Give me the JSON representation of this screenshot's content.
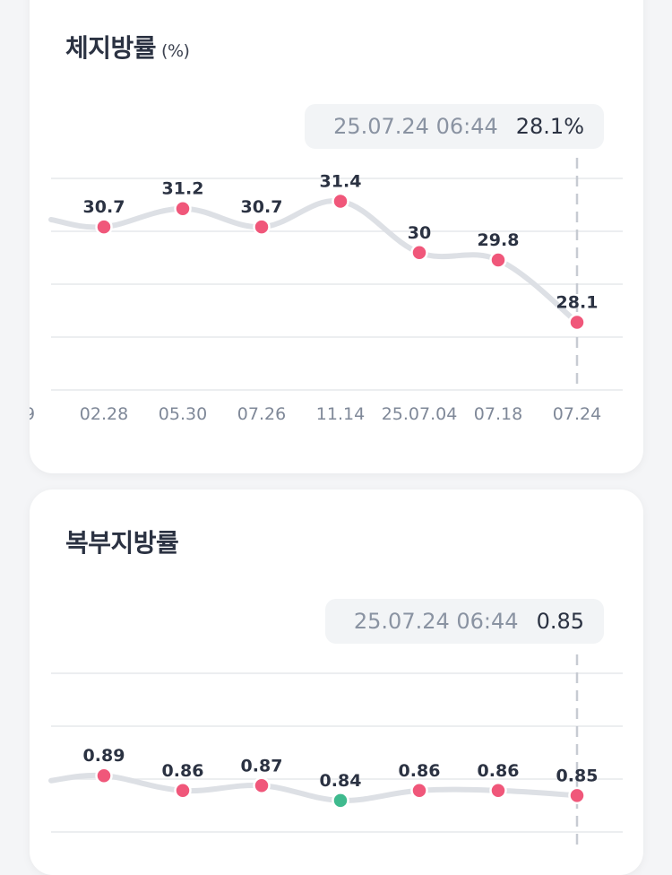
{
  "cards": [
    {
      "title": "체지방률",
      "unit": "(%)",
      "tooltip": {
        "date": "25.07.24 06:44",
        "value": "28.1%"
      },
      "chart_data": {
        "type": "line",
        "x": [
          "9",
          "02.28",
          "05.30",
          "07.26",
          "11.14",
          "25.07.04",
          "07.18",
          "07.24"
        ],
        "series": [
          {
            "values": [
              null,
              30.7,
              31.2,
              30.7,
              31.4,
              30.0,
              29.8,
              28.1
            ]
          }
        ],
        "leading_value": 30.9,
        "ylim": [
          27.0,
          32.0
        ],
        "grid": true,
        "point_color": "#f0577a",
        "line_color": "#dde0e5",
        "selected_index": 7
      }
    },
    {
      "title": "복부지방률",
      "unit": "",
      "tooltip": {
        "date": "25.07.24 06:44",
        "value": "0.85"
      },
      "chart_data": {
        "type": "line",
        "x": [
          "02.28",
          "05.30",
          "07.26",
          "11.14",
          "25.07.04",
          "07.18",
          "07.24"
        ],
        "series": [
          {
            "values": [
              0.89,
              0.86,
              0.87,
              0.84,
              0.86,
              0.86,
              0.85
            ]
          }
        ],
        "leading_value": 0.88,
        "ylim": [
          0.8,
          0.95
        ],
        "grid": true,
        "point_color": "#f0577a",
        "normal_point_color": "#3fba8e",
        "normal_index": 3,
        "line_color": "#dde0e5",
        "selected_index": 6
      }
    }
  ]
}
